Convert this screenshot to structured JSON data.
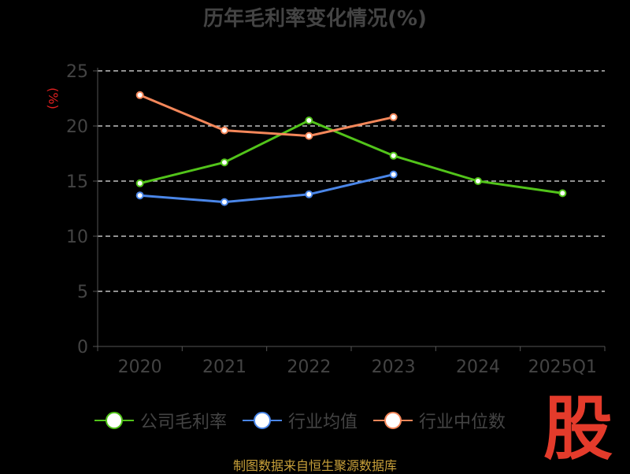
{
  "chart_data": {
    "type": "line",
    "title": "历年毛利率变化情况(%)",
    "ylabel": "(%)",
    "categories": [
      "2020",
      "2021",
      "2022",
      "2023",
      "2024",
      "2025Q1"
    ],
    "ylim": [
      0,
      25
    ],
    "yticks": [
      0,
      5,
      10,
      15,
      20,
      25
    ],
    "grid": true,
    "legend_position": "bottom",
    "series": [
      {
        "name": "公司毛利率",
        "color": "#52c41a",
        "values": [
          14.8,
          16.7,
          20.5,
          17.3,
          15.0,
          13.9
        ]
      },
      {
        "name": "行业均值",
        "color": "#4a86e8",
        "values": [
          13.7,
          13.1,
          13.8,
          15.6,
          null,
          null
        ]
      },
      {
        "name": "行业中位数",
        "color": "#f4875a",
        "values": [
          22.8,
          19.6,
          19.1,
          20.8,
          null,
          null
        ]
      }
    ]
  },
  "brand_text": "股",
  "footer": "制图数据来自恒生聚源数据库"
}
